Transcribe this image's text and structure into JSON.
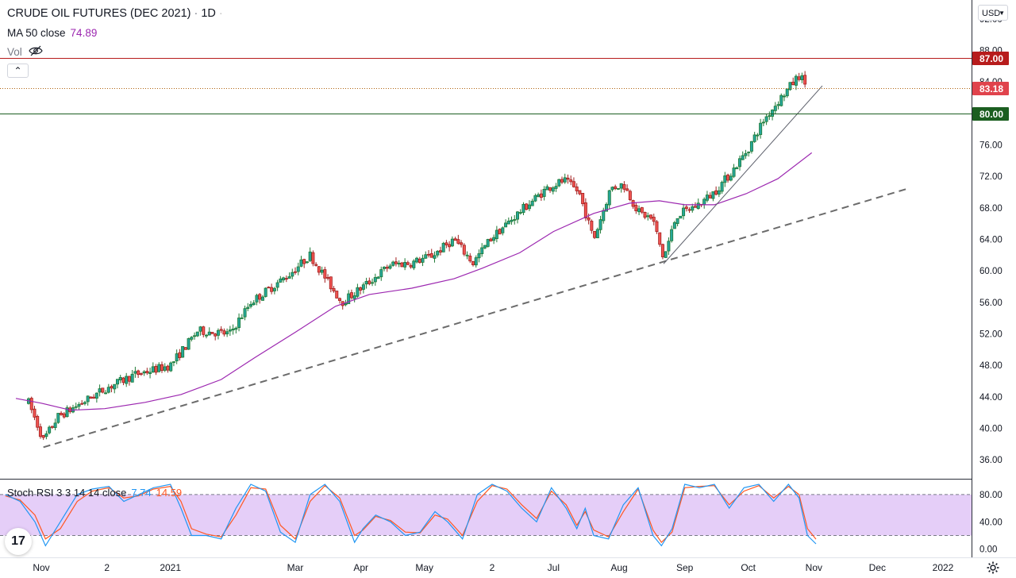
{
  "header": {
    "symbol": "CRUDE OIL FUTURES (DEC 2021)",
    "interval": "1D",
    "ma_label": "MA 50 close",
    "ma_value": "74.89",
    "vol_label": "Vol"
  },
  "stoch": {
    "label": "Stoch RSI 3 3 14 14 close",
    "k_value": "7.74",
    "d_value": "14.59"
  },
  "currency": "USD",
  "colors": {
    "up": "#26a69a",
    "up_body": "#1f7a35",
    "down": "#c0392b",
    "ma": "#9c27b0",
    "red_line": "#b71c1c",
    "green_line": "#1b5e20",
    "price_tag": "#e0434c",
    "stoch_k": "#2196f3",
    "stoch_d": "#ff5722",
    "stoch_band": "#e1c6f7"
  },
  "chart_data": [
    {
      "type": "candlestick",
      "title": "CRUDE OIL FUTURES (DEC 2021)",
      "x_ticks": [
        "Nov",
        "2",
        "2021",
        "Mar",
        "Apr",
        "May",
        "2",
        "Jul",
        "Aug",
        "Sep",
        "Oct",
        "Nov",
        "Dec",
        "2022"
      ],
      "y_ticks": [
        36,
        40,
        44,
        48,
        52,
        56,
        60,
        64,
        68,
        72,
        76,
        80,
        84,
        88,
        92
      ],
      "y_tick_labels": [
        "36.00",
        "40.00",
        "44.00",
        "48.00",
        "52.00",
        "56.00",
        "60.00",
        "64.00",
        "68.00",
        "72.00",
        "76.00",
        "80.00",
        "84.00",
        "88.00",
        "92.00"
      ],
      "ylim": [
        33.6,
        94.4
      ],
      "price_path": [
        [
          "2020-10-26",
          43.3
        ],
        [
          "2020-11-02",
          38.5
        ],
        [
          "2020-11-09",
          41.5
        ],
        [
          "2020-11-20",
          43.2
        ],
        [
          "2020-12-01",
          45.0
        ],
        [
          "2020-12-15",
          46.8
        ],
        [
          "2021-01-01",
          48.0
        ],
        [
          "2021-01-14",
          52.4
        ],
        [
          "2021-01-29",
          52.0
        ],
        [
          "2021-02-08",
          56.0
        ],
        [
          "2021-02-26",
          59.5
        ],
        [
          "2021-03-08",
          62.0
        ],
        [
          "2021-03-18",
          58.0
        ],
        [
          "2021-03-23",
          56.0
        ],
        [
          "2021-04-06",
          58.8
        ],
        [
          "2021-04-15",
          60.8
        ],
        [
          "2021-04-25",
          61.0
        ],
        [
          "2021-05-05",
          62.0
        ],
        [
          "2021-05-15",
          64.0
        ],
        [
          "2021-05-24",
          61.0
        ],
        [
          "2021-06-01",
          64.0
        ],
        [
          "2021-06-15",
          67.5
        ],
        [
          "2021-06-28",
          70.5
        ],
        [
          "2021-07-06",
          71.5
        ],
        [
          "2021-07-13",
          70.0
        ],
        [
          "2021-07-20",
          64.0
        ],
        [
          "2021-07-28",
          70.5
        ],
        [
          "2021-08-03",
          71.0
        ],
        [
          "2021-08-10",
          67.5
        ],
        [
          "2021-08-17",
          66.5
        ],
        [
          "2021-08-22",
          61.5
        ],
        [
          "2021-08-28",
          67.0
        ],
        [
          "2021-09-08",
          68.5
        ],
        [
          "2021-09-15",
          70.0
        ],
        [
          "2021-09-23",
          72.5
        ],
        [
          "2021-10-01",
          75.5
        ],
        [
          "2021-10-08",
          79.0
        ],
        [
          "2021-10-15",
          81.5
        ],
        [
          "2021-10-21",
          83.5
        ],
        [
          "2021-10-25",
          84.8
        ],
        [
          "2021-10-29",
          83.5
        ]
      ],
      "ma50": {
        "label": "MA 50 close",
        "last_value": 74.89,
        "points": [
          [
            "2020-10-20",
            43.8
          ],
          [
            "2020-11-01",
            43.2
          ],
          [
            "2020-11-15",
            42.3
          ],
          [
            "2020-12-01",
            42.5
          ],
          [
            "2020-12-20",
            43.3
          ],
          [
            "2021-01-06",
            44.3
          ],
          [
            "2021-01-25",
            46.2
          ],
          [
            "2021-02-10",
            49.0
          ],
          [
            "2021-03-01",
            52.2
          ],
          [
            "2021-03-20",
            55.5
          ],
          [
            "2021-04-05",
            57.0
          ],
          [
            "2021-04-25",
            57.8
          ],
          [
            "2021-05-15",
            59.0
          ],
          [
            "2021-05-28",
            60.3
          ],
          [
            "2021-06-15",
            62.3
          ],
          [
            "2021-07-01",
            65.0
          ],
          [
            "2021-07-20",
            67.3
          ],
          [
            "2021-08-06",
            68.6
          ],
          [
            "2021-08-20",
            68.9
          ],
          [
            "2021-09-01",
            68.4
          ],
          [
            "2021-09-15",
            68.4
          ],
          [
            "2021-09-30",
            69.8
          ],
          [
            "2021-10-15",
            71.7
          ],
          [
            "2021-10-31",
            75.0
          ]
        ]
      },
      "horizontal_lines": [
        {
          "price": 87.0,
          "label": "87.00",
          "color": "#b71c1c"
        },
        {
          "price": 80.0,
          "label": "80.00",
          "color": "#1b5e20"
        },
        {
          "price": 83.18,
          "label": "83.18",
          "color": "#e0434c",
          "style": "dotted"
        }
      ],
      "trendlines": [
        {
          "style": "dashed",
          "from": [
            "2020-11-02",
            37.6
          ],
          "to": [
            "2021-12-16",
            70.5
          ]
        },
        {
          "style": "solid",
          "from": [
            "2021-08-22",
            60.9
          ],
          "to": [
            "2021-11-05",
            83.5
          ]
        }
      ],
      "last_price": 83.18
    },
    {
      "type": "line",
      "title": "Stoch RSI 3 3 14 14 close",
      "y_ticks": [
        0,
        40,
        80
      ],
      "y_tick_labels": [
        "0.00",
        "40.00",
        "80.00"
      ],
      "band": [
        20,
        80
      ],
      "series": [
        {
          "name": "K",
          "last_value": 7.74
        },
        {
          "name": "D",
          "last_value": 14.59
        }
      ],
      "k_values_by_date": [
        [
          "2020-10-15",
          80
        ],
        [
          "2020-10-22",
          70
        ],
        [
          "2020-10-29",
          40
        ],
        [
          "2020-11-03",
          5
        ],
        [
          "2020-11-10",
          40
        ],
        [
          "2020-11-18",
          80
        ],
        [
          "2020-11-25",
          88
        ],
        [
          "2020-12-03",
          92
        ],
        [
          "2020-12-10",
          70
        ],
        [
          "2020-12-17",
          80
        ],
        [
          "2020-12-24",
          90
        ],
        [
          "2021-01-01",
          95
        ],
        [
          "2021-01-06",
          60
        ],
        [
          "2021-01-11",
          20
        ],
        [
          "2021-01-18",
          20
        ],
        [
          "2021-01-25",
          15
        ],
        [
          "2021-02-01",
          60
        ],
        [
          "2021-02-08",
          95
        ],
        [
          "2021-02-15",
          85
        ],
        [
          "2021-02-22",
          25
        ],
        [
          "2021-03-01",
          10
        ],
        [
          "2021-03-08",
          80
        ],
        [
          "2021-03-15",
          95
        ],
        [
          "2021-03-22",
          70
        ],
        [
          "2021-03-29",
          10
        ],
        [
          "2021-04-02",
          30
        ],
        [
          "2021-04-08",
          50
        ],
        [
          "2021-04-15",
          40
        ],
        [
          "2021-04-22",
          20
        ],
        [
          "2021-04-29",
          25
        ],
        [
          "2021-05-06",
          55
        ],
        [
          "2021-05-12",
          40
        ],
        [
          "2021-05-19",
          15
        ],
        [
          "2021-05-26",
          80
        ],
        [
          "2021-06-02",
          95
        ],
        [
          "2021-06-09",
          85
        ],
        [
          "2021-06-16",
          60
        ],
        [
          "2021-06-23",
          40
        ],
        [
          "2021-06-30",
          90
        ],
        [
          "2021-07-07",
          60
        ],
        [
          "2021-07-12",
          30
        ],
        [
          "2021-07-16",
          60
        ],
        [
          "2021-07-20",
          20
        ],
        [
          "2021-07-27",
          15
        ],
        [
          "2021-08-03",
          65
        ],
        [
          "2021-08-10",
          90
        ],
        [
          "2021-08-17",
          20
        ],
        [
          "2021-08-21",
          5
        ],
        [
          "2021-08-26",
          30
        ],
        [
          "2021-09-01",
          95
        ],
        [
          "2021-09-08",
          90
        ],
        [
          "2021-09-15",
          95
        ],
        [
          "2021-09-22",
          60
        ],
        [
          "2021-09-29",
          90
        ],
        [
          "2021-10-06",
          95
        ],
        [
          "2021-10-13",
          70
        ],
        [
          "2021-10-20",
          95
        ],
        [
          "2021-10-25",
          75
        ],
        [
          "2021-10-29",
          20
        ],
        [
          "2021-11-02",
          7.74
        ]
      ],
      "d_values_by_date": [
        [
          "2020-10-15",
          78
        ],
        [
          "2020-10-22",
          72
        ],
        [
          "2020-10-29",
          50
        ],
        [
          "2020-11-03",
          15
        ],
        [
          "2020-11-10",
          30
        ],
        [
          "2020-11-18",
          70
        ],
        [
          "2020-11-25",
          85
        ],
        [
          "2020-12-03",
          90
        ],
        [
          "2020-12-10",
          75
        ],
        [
          "2020-12-17",
          78
        ],
        [
          "2020-12-24",
          88
        ],
        [
          "2021-01-01",
          92
        ],
        [
          "2021-01-06",
          70
        ],
        [
          "2021-01-11",
          30
        ],
        [
          "2021-01-18",
          22
        ],
        [
          "2021-01-25",
          18
        ],
        [
          "2021-02-01",
          50
        ],
        [
          "2021-02-08",
          90
        ],
        [
          "2021-02-15",
          88
        ],
        [
          "2021-02-22",
          35
        ],
        [
          "2021-03-01",
          15
        ],
        [
          "2021-03-08",
          70
        ],
        [
          "2021-03-15",
          93
        ],
        [
          "2021-03-22",
          75
        ],
        [
          "2021-03-29",
          20
        ],
        [
          "2021-04-02",
          28
        ],
        [
          "2021-04-08",
          48
        ],
        [
          "2021-04-15",
          42
        ],
        [
          "2021-04-22",
          25
        ],
        [
          "2021-04-29",
          24
        ],
        [
          "2021-05-06",
          50
        ],
        [
          "2021-05-12",
          44
        ],
        [
          "2021-05-19",
          20
        ],
        [
          "2021-05-26",
          70
        ],
        [
          "2021-06-02",
          93
        ],
        [
          "2021-06-09",
          88
        ],
        [
          "2021-06-16",
          65
        ],
        [
          "2021-06-23",
          45
        ],
        [
          "2021-06-30",
          85
        ],
        [
          "2021-07-07",
          65
        ],
        [
          "2021-07-12",
          35
        ],
        [
          "2021-07-16",
          55
        ],
        [
          "2021-07-20",
          28
        ],
        [
          "2021-07-27",
          18
        ],
        [
          "2021-08-03",
          55
        ],
        [
          "2021-08-10",
          88
        ],
        [
          "2021-08-17",
          28
        ],
        [
          "2021-08-21",
          10
        ],
        [
          "2021-08-26",
          25
        ],
        [
          "2021-09-01",
          90
        ],
        [
          "2021-09-08",
          92
        ],
        [
          "2021-09-15",
          93
        ],
        [
          "2021-09-22",
          65
        ],
        [
          "2021-09-29",
          85
        ],
        [
          "2021-10-06",
          93
        ],
        [
          "2021-10-13",
          75
        ],
        [
          "2021-10-20",
          92
        ],
        [
          "2021-10-25",
          80
        ],
        [
          "2021-10-29",
          30
        ],
        [
          "2021-11-02",
          14.59
        ]
      ]
    }
  ]
}
